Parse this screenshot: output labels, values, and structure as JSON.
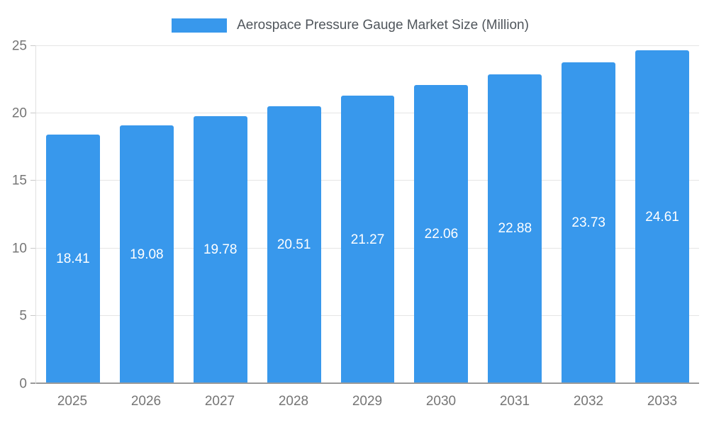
{
  "chart_data": {
    "type": "bar",
    "title": "Aerospace Pressure Gauge Market Size (Million)",
    "categories": [
      "2025",
      "2026",
      "2027",
      "2028",
      "2029",
      "2030",
      "2031",
      "2032",
      "2033"
    ],
    "values": [
      18.41,
      19.08,
      19.78,
      20.51,
      21.27,
      22.06,
      22.88,
      23.73,
      24.61
    ],
    "value_labels": [
      "18.41",
      "19.08",
      "19.78",
      "20.51",
      "21.27",
      "22.06",
      "22.88",
      "23.73",
      "24.61"
    ],
    "ylim": [
      0,
      25
    ],
    "yticks": [
      0,
      5,
      10,
      15,
      20,
      25
    ],
    "bar_color": "#3898ec",
    "value_label_color": "#ffffff",
    "grid": true,
    "legend_position": "top"
  }
}
